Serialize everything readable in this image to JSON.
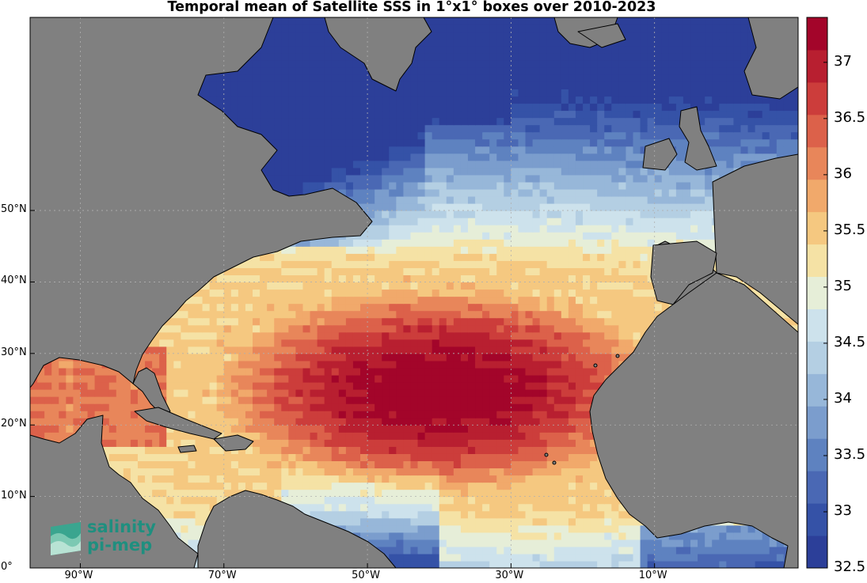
{
  "title": "Temporal mean of Satellite SSS in 1°x1° boxes over 2010-2023",
  "map": {
    "lon_range": [
      -97,
      10
    ],
    "lat_range": [
      0,
      77
    ],
    "land_color": "#808080",
    "ocean_missing_color": "#ffffff",
    "lon_ticks": [
      {
        "lon": -90,
        "label": "90°W"
      },
      {
        "lon": -70,
        "label": "70°W"
      },
      {
        "lon": -50,
        "label": "50°W"
      },
      {
        "lon": -30,
        "label": "30°W"
      },
      {
        "lon": -10,
        "label": "10°W"
      }
    ],
    "lat_ticks": [
      {
        "lat": 0,
        "label": "0°"
      },
      {
        "lat": 10,
        "label": "10°N"
      },
      {
        "lat": 20,
        "label": "20°N"
      },
      {
        "lat": 30,
        "label": "30°N"
      },
      {
        "lat": 40,
        "label": "40°N"
      },
      {
        "lat": 50,
        "label": "50°N"
      }
    ]
  },
  "colorbar": {
    "min": 32.5,
    "max": 37.4,
    "tick_labels": [
      "32.5",
      "33",
      "33.5",
      "34",
      "34.5",
      "35",
      "35.5",
      "36",
      "36.5",
      "37"
    ],
    "colors": [
      "#2c3f99",
      "#3552a7",
      "#4a68b4",
      "#5e82c0",
      "#7b9dcd",
      "#97b7d9",
      "#b4cfe3",
      "#cde2ec",
      "#e6eed8",
      "#f5e2a5",
      "#f5c880",
      "#f1a96b",
      "#e8865a",
      "#dc614a",
      "#cc3d3b",
      "#b81f30",
      "#a3052a"
    ]
  },
  "logo": {
    "line1": "salinity",
    "line2": "pi-mep"
  }
}
